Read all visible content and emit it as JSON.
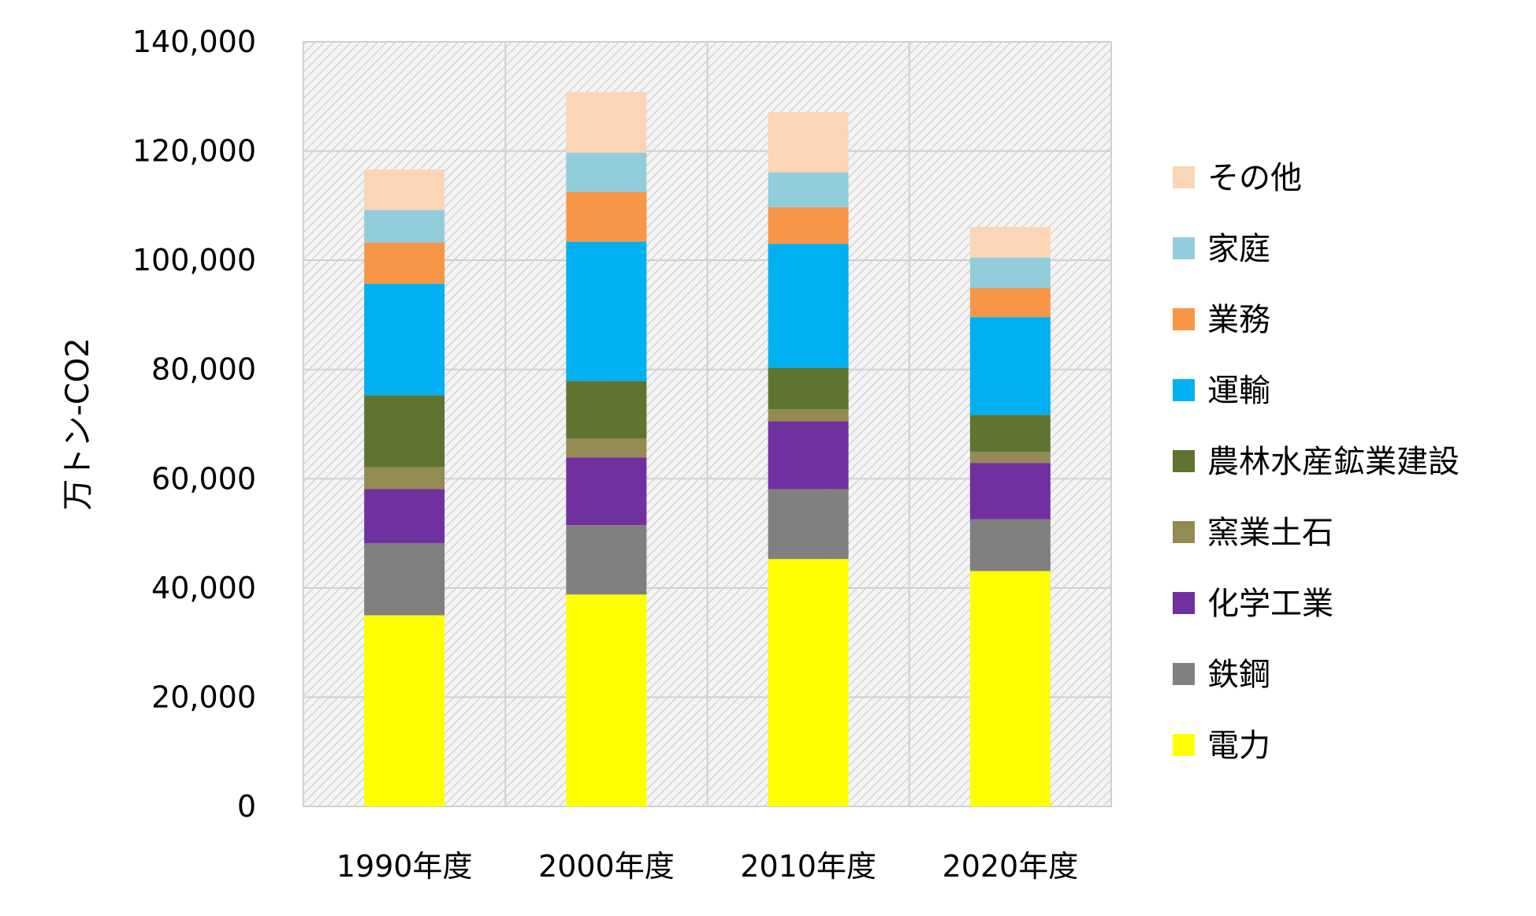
{
  "chart_data": {
    "type": "bar",
    "stacked": true,
    "title": "",
    "xlabel": "",
    "ylabel": "万トン-CO2",
    "categories": [
      "1990年度",
      "2000年度",
      "2010年度",
      "2020年度"
    ],
    "ylim": [
      0,
      140000
    ],
    "yticks": [
      0,
      20000,
      40000,
      60000,
      80000,
      100000,
      120000,
      140000
    ],
    "ytick_labels": [
      "0",
      "20,000",
      "40,000",
      "60,000",
      "80,000",
      "100,000",
      "120,000",
      "140,000"
    ],
    "grid": true,
    "plot_background": "light gray diagonal hatch",
    "legend_position": "right",
    "series": [
      {
        "name": "電力",
        "color": "#FFFF00",
        "values": [
          35000,
          38800,
          45300,
          43100
        ]
      },
      {
        "name": "鉄鋼",
        "color": "#808080",
        "values": [
          13200,
          12700,
          12800,
          9500
        ]
      },
      {
        "name": "化学工業",
        "color": "#7030A0",
        "values": [
          9900,
          12400,
          12400,
          10300
        ]
      },
      {
        "name": "窯業土石",
        "color": "#948A54",
        "values": [
          4000,
          3500,
          2200,
          2000
        ]
      },
      {
        "name": "農林水産鉱業建設",
        "color": "#5E7430",
        "values": [
          13200,
          10500,
          7600,
          6800
        ]
      },
      {
        "name": "運輸",
        "color": "#00B0F0",
        "values": [
          20400,
          25500,
          22700,
          17900
        ]
      },
      {
        "name": "業務",
        "color": "#F79646",
        "values": [
          7500,
          9100,
          6700,
          5300
        ]
      },
      {
        "name": "家庭",
        "color": "#92CDDC",
        "values": [
          6000,
          7200,
          6400,
          5600
        ]
      },
      {
        "name": "その他",
        "color": "#FBD5B5",
        "values": [
          7400,
          11100,
          11000,
          5600
        ]
      }
    ]
  }
}
